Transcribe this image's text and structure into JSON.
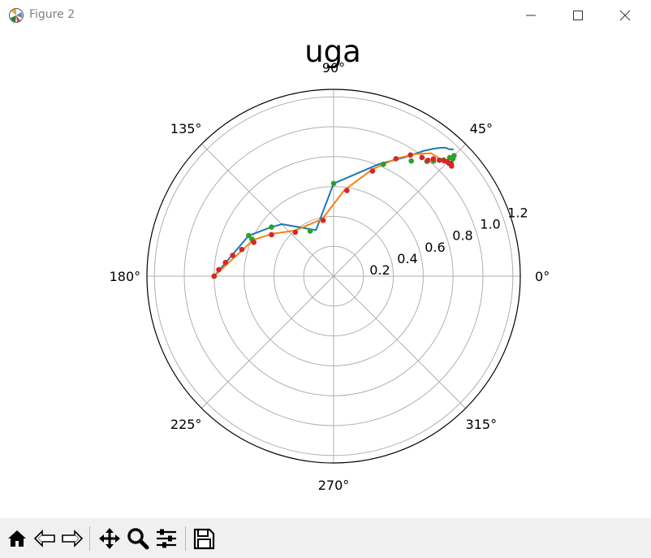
{
  "window": {
    "title": "Figure 2"
  },
  "toolbar": {
    "buttons": [
      "home-icon",
      "back-icon",
      "forward-icon",
      "pan-icon",
      "zoom-icon",
      "configure-subplots-icon",
      "save-icon"
    ]
  },
  "colors": {
    "series1": "#1f77b4",
    "series2": "#ff7f0e",
    "series3": "#2ca02c",
    "series4": "#d62728",
    "grid": "#b0b0b0",
    "toolbar_bg": "#f0f0f0"
  },
  "chart_data": {
    "type": "scatter",
    "projection": "polar",
    "title": "uga",
    "theta_ticks": [
      "0°",
      "45°",
      "90°",
      "135°",
      "180°",
      "225°",
      "270°",
      "315°"
    ],
    "r_ticks": [
      "0.2",
      "0.4",
      "0.6",
      "0.8",
      "1.0",
      "1.2"
    ],
    "rlim": [
      0,
      1.25
    ],
    "grid": true,
    "series": [
      {
        "style": "line",
        "color": "#1f77b4",
        "theta_deg": [
          180,
          154.5,
          141.7,
          134.8,
          111.0,
          90.0,
          67.9,
          59.5,
          54.4,
          51.6,
          50.1,
          48.9,
          47.5,
          46.6
        ],
        "r": [
          0.8,
          0.63,
          0.53,
          0.49,
          0.33,
          0.62,
          0.81,
          0.92,
          1.03,
          1.09,
          1.12,
          1.14,
          1.15,
          1.17
        ]
      },
      {
        "style": "line",
        "color": "#ff7f0e",
        "theta_deg": [
          180,
          155.7,
          145.5,
          130.3,
          101.2,
          82.9,
          70.1,
          62.0,
          56.4,
          51.6,
          47.5,
          44.4,
          42.8
        ],
        "r": [
          0.8,
          0.59,
          0.5,
          0.4,
          0.39,
          0.58,
          0.76,
          0.89,
          0.98,
          1.05,
          1.06,
          1.08,
          1.07
        ]
      },
      {
        "style": "markers",
        "color": "#2ca02c",
        "theta_deg": [
          180,
          155.7,
          154.5,
          141.7,
          117.5,
          90.0,
          66.0,
          56.0,
          50.9,
          49.0,
          46.6,
          45.6,
          45.0,
          44.5
        ],
        "r": [
          0.8,
          0.6,
          0.63,
          0.53,
          0.34,
          0.62,
          0.82,
          0.93,
          0.99,
          1.02,
          1.07,
          1.11,
          1.14,
          1.12
        ]
      },
      {
        "style": "markers",
        "color": "#d62728",
        "theta_deg": [
          180,
          176.8,
          172.8,
          168.4,
          163.8,
          157.0,
          146.3,
          131.1,
          100.6,
          81.2,
          69.7,
          62.0,
          57.6,
          53.3,
          50.8,
          49.6,
          47.6,
          46.2,
          45.2,
          44.4,
          43.8,
          43.0
        ],
        "r": [
          0.8,
          0.77,
          0.73,
          0.69,
          0.64,
          0.58,
          0.5,
          0.39,
          0.38,
          0.58,
          0.75,
          0.89,
          0.96,
          0.99,
          1.0,
          1.03,
          1.05,
          1.07,
          1.08,
          1.08,
          1.09,
          1.08
        ]
      }
    ]
  }
}
